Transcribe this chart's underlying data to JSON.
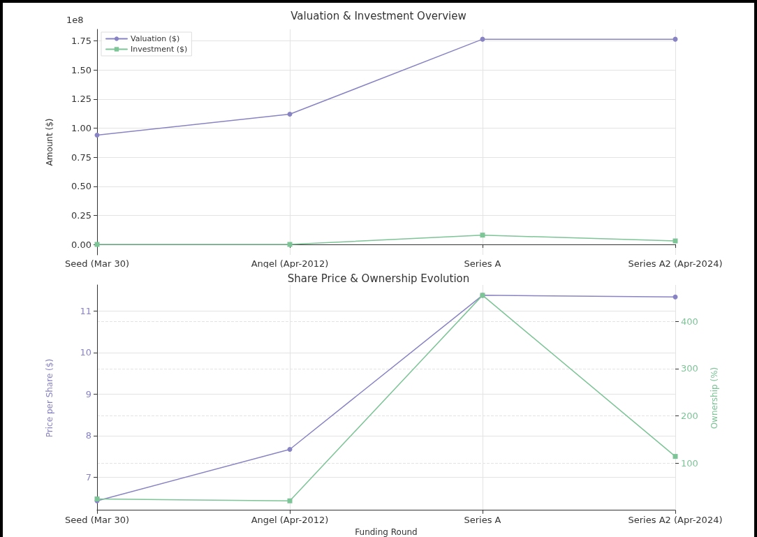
{
  "chart_data": [
    {
      "type": "line",
      "title": "Valuation & Investment Overview",
      "ylabel": "Amount ($)",
      "categories": [
        "Seed (Mar 30)",
        "Angel (Apr-2012)",
        "Series A",
        "Series A2 (Apr-2024)"
      ],
      "series": [
        {
          "name": "Valuation ($)",
          "color": "#8884c4",
          "marker": "circle",
          "values": [
            0.94,
            1.12,
            1.765,
            1.765
          ]
        },
        {
          "name": "Investment ($)",
          "color": "#7dc497",
          "marker": "square",
          "values": [
            0,
            0,
            0.08,
            0.03
          ]
        }
      ],
      "ylim": [
        -0.09,
        1.85
      ],
      "yticks": [
        {
          "value": 0,
          "label": "0.00"
        },
        {
          "value": 0.25,
          "label": "0.25"
        },
        {
          "value": 0.5,
          "label": "0.50"
        },
        {
          "value": 0.75,
          "label": "0.75"
        },
        {
          "value": 1,
          "label": "1.00"
        },
        {
          "value": 1.25,
          "label": "1.25"
        },
        {
          "value": 1.5,
          "label": "1.50"
        },
        {
          "value": 1.75,
          "label": "1.75"
        }
      ],
      "annotations": [
        "1e8"
      ],
      "grid": true,
      "legend": "top left",
      "line_style": "solid"
    },
    {
      "type": "line",
      "title": "Share Price & Ownership Evolution",
      "xlabel": "Funding Round",
      "ylabel": "Price per Share ($)",
      "y2label": "Ownership (%)",
      "categories": [
        "Seed (Mar 30)",
        "Angel (Apr-2012)",
        "Series A",
        "Series A2 (Apr-2024)"
      ],
      "series": [
        {
          "color": "#8884c4",
          "marker": "circle",
          "values": [
            6.43,
            7.67,
            11.38,
            11.34
          ]
        },
        {
          "color": "#7dc497",
          "marker": "square",
          "axis": "y2",
          "values": [
            24,
            20,
            455,
            114
          ]
        }
      ],
      "ylim": [
        6.18,
        11.63
      ],
      "yticks": [
        7,
        8,
        9,
        10,
        11
      ],
      "y2lim": [
        -2,
        477
      ],
      "y2ticks": [
        100,
        200,
        300,
        400
      ],
      "grid": true,
      "legend": false,
      "line_style": "solid"
    }
  ]
}
